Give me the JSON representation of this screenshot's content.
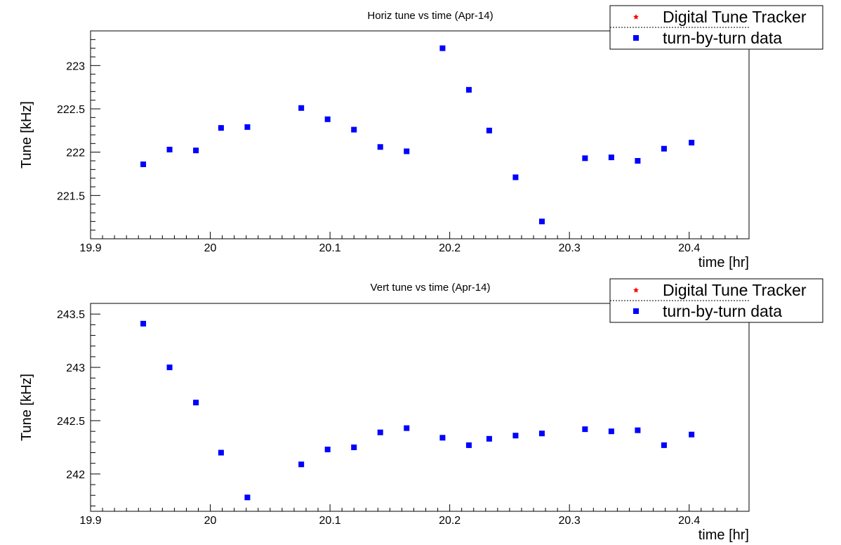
{
  "chart_data": [
    {
      "type": "scatter",
      "title": "Horiz tune vs time (Apr-14)",
      "xlabel": "time [hr]",
      "ylabel": "Tune [kHz]",
      "xlim": [
        19.9,
        20.45
      ],
      "ylim": [
        221.0,
        223.4
      ],
      "xticks": [
        "19.9",
        "20",
        "20.1",
        "20.2",
        "20.3",
        "20.4"
      ],
      "yticks": [
        "221.5",
        "222",
        "222.5",
        "223"
      ],
      "legend_position": "top-right",
      "legend": [
        "Digital Tune Tracker",
        "turn-by-turn data"
      ],
      "series": [
        {
          "name": "Digital Tune Tracker",
          "color": "#ff0000",
          "marker": "star",
          "x": [],
          "y": []
        },
        {
          "name": "turn-by-turn data",
          "color": "#0000ff",
          "marker": "square",
          "x": [
            19.944,
            19.966,
            19.988,
            20.009,
            20.031,
            20.076,
            20.098,
            20.12,
            20.142,
            20.164,
            20.194,
            20.216,
            20.233,
            20.255,
            20.277,
            20.313,
            20.335,
            20.357,
            20.379,
            20.402
          ],
          "y": [
            221.86,
            222.03,
            222.02,
            222.28,
            222.29,
            222.51,
            222.38,
            222.26,
            222.06,
            222.01,
            223.2,
            222.72,
            222.25,
            221.71,
            221.2,
            221.93,
            221.94,
            221.9,
            222.04,
            222.11
          ]
        }
      ]
    },
    {
      "type": "scatter",
      "title": "Vert tune vs time (Apr-14)",
      "xlabel": "time [hr]",
      "ylabel": "Tune [kHz]",
      "xlim": [
        19.9,
        20.45
      ],
      "ylim": [
        241.65,
        243.6
      ],
      "xticks": [
        "19.9",
        "20",
        "20.1",
        "20.2",
        "20.3",
        "20.4"
      ],
      "yticks": [
        "242",
        "242.5",
        "243",
        "243.5"
      ],
      "legend_position": "top-right",
      "legend": [
        "Digital Tune Tracker",
        "turn-by-turn data"
      ],
      "series": [
        {
          "name": "Digital Tune Tracker",
          "color": "#ff0000",
          "marker": "star",
          "x": [],
          "y": []
        },
        {
          "name": "turn-by-turn data",
          "color": "#0000ff",
          "marker": "square",
          "x": [
            19.944,
            19.966,
            19.988,
            20.009,
            20.031,
            20.076,
            20.098,
            20.12,
            20.142,
            20.164,
            20.194,
            20.216,
            20.233,
            20.255,
            20.277,
            20.313,
            20.335,
            20.357,
            20.379,
            20.402
          ],
          "y": [
            243.41,
            243.0,
            242.67,
            242.2,
            241.78,
            242.09,
            242.23,
            242.25,
            242.39,
            242.43,
            242.34,
            242.27,
            242.33,
            242.36,
            242.38,
            242.42,
            242.4,
            242.41,
            242.27,
            242.37
          ]
        }
      ]
    }
  ]
}
